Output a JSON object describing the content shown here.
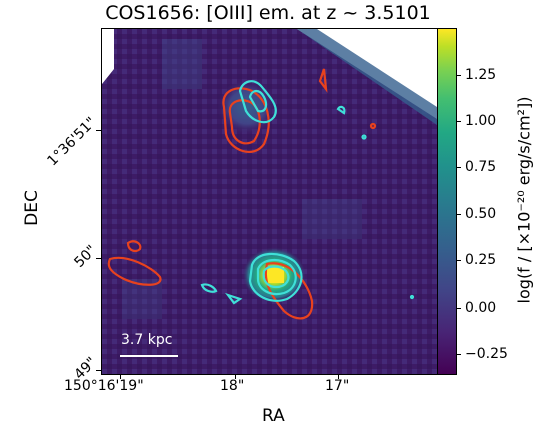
{
  "title": "COS1656: [OIII] em. at z ~ 3.5101",
  "axes": {
    "xlabel": "RA",
    "ylabel": "DEC",
    "x_ticks": [
      "150°16'19\"",
      "18\"",
      "17\""
    ],
    "y_ticks": [
      "1°36'51\"",
      "50\"",
      "49\""
    ]
  },
  "colorbar": {
    "label": "log(f / [×10⁻²⁰ erg/s/cm²])",
    "ticks": [
      "1.25",
      "1.00",
      "0.75",
      "0.50",
      "0.25",
      "0.00",
      "−0.25"
    ],
    "colormap": "viridis",
    "colors": [
      "#440154",
      "#414487",
      "#2a788e",
      "#22a884",
      "#7ad151",
      "#fde725"
    ]
  },
  "scalebar": {
    "label": "3.7 kpc",
    "color": "#ffffff"
  },
  "contours": {
    "red": "#e8421e",
    "cyan": "#3fe0d8"
  },
  "image": {
    "description_colors": {
      "background": "#3b1a63",
      "bright": "#fde725"
    }
  }
}
